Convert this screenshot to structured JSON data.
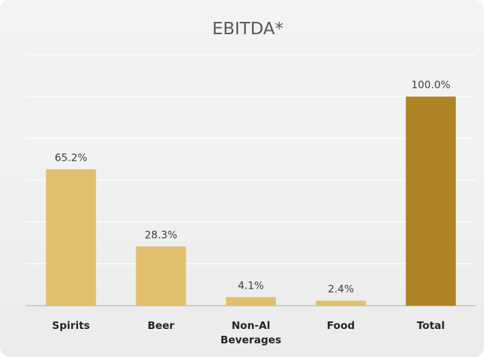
{
  "chart_data": {
    "type": "bar",
    "title": "EBITDA*",
    "categories": [
      "Spirits",
      "Beer",
      "Non-Al Beverages",
      "Food",
      "Total"
    ],
    "category_lines": [
      [
        "Spirits"
      ],
      [
        "Beer"
      ],
      [
        "Non-Al",
        "Beverages"
      ],
      [
        "Food"
      ],
      [
        "Total"
      ]
    ],
    "values": [
      65.2,
      28.3,
      4.1,
      2.4,
      100.0
    ],
    "value_labels": [
      "65.2%",
      "28.3%",
      "4.1%",
      "2.4%",
      "100.0%"
    ],
    "bar_colors": [
      "#e2bf6c",
      "#e2bf6c",
      "#e2bf6c",
      "#e2bf6c",
      "#ae8424"
    ],
    "xlabel": "",
    "ylabel": "",
    "ylim": [
      0,
      120
    ],
    "grid": true,
    "legend": "none"
  }
}
